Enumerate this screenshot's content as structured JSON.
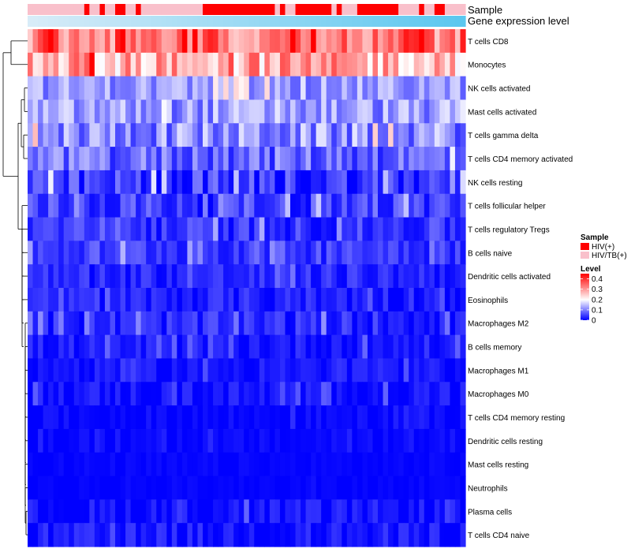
{
  "chart_data": {
    "type": "heatmap",
    "annotations": {
      "sample_track_label": "Sample",
      "expression_track_label": "Gene expression level",
      "sample_groups": [
        "HIV(+)",
        "HIV/TB(+)"
      ],
      "sample_group_colors": [
        "#ff0000",
        "#f9c0cb"
      ],
      "column_groups": [
        1,
        1,
        1,
        1,
        1,
        1,
        1,
        1,
        1,
        1,
        1,
        0,
        1,
        1,
        0,
        1,
        1,
        0,
        0,
        1,
        1,
        0,
        1,
        1,
        1,
        1,
        1,
        1,
        1,
        1,
        1,
        1,
        1,
        1,
        0,
        0,
        0,
        0,
        0,
        0,
        0,
        0,
        0,
        0,
        0,
        0,
        0,
        0,
        1,
        0,
        1,
        1,
        0,
        0,
        0,
        0,
        0,
        0,
        0,
        1,
        0,
        1,
        1,
        1,
        0,
        0,
        0,
        0,
        0,
        0,
        0,
        0,
        1,
        1,
        1,
        1,
        0,
        1,
        1,
        0,
        0,
        1,
        1,
        1,
        1
      ],
      "expression_color_low": "#d8ecf8",
      "expression_color_high": "#5bc7ef"
    },
    "rows": [
      "T cells CD8",
      "Monocytes",
      "NK cells activated",
      "Mast cells activated",
      "T cells gamma delta",
      "T cells CD4 memory activated",
      "NK cells resting",
      "T cells follicular helper",
      "T cells regulatory  Tregs",
      "B cells naive",
      "Dendritic cells activated",
      "Eosinophils",
      "Macrophages M2",
      "B cells memory",
      "Macrophages M1",
      "Macrophages M0",
      "T cells CD4 memory resting",
      "Dendritic cells resting",
      "Mast cells resting",
      "Neutrophils",
      "Plasma cells",
      "T cells CD4 naive"
    ],
    "row_base_levels": [
      0.34,
      0.28,
      0.12,
      0.12,
      0.11,
      0.08,
      0.04,
      0.05,
      0.04,
      0.05,
      0.03,
      0.025,
      0.03,
      0.02,
      0.015,
      0.015,
      0.005,
      0.005,
      0.003,
      0.002,
      0.01,
      0.015
    ],
    "row_spread": [
      0.09,
      0.09,
      0.05,
      0.06,
      0.07,
      0.06,
      0.06,
      0.05,
      0.04,
      0.04,
      0.03,
      0.03,
      0.035,
      0.025,
      0.02,
      0.025,
      0.015,
      0.012,
      0.008,
      0.005,
      0.03,
      0.03
    ],
    "n_columns": 85,
    "legend": {
      "sample_title": "Sample",
      "level_title": "Level",
      "level_ticks": [
        "0.4",
        "0.3",
        "0.2",
        "0.1",
        "0"
      ],
      "level_tick_values": [
        0.4,
        0.3,
        0.2,
        0.1,
        0
      ],
      "scale_min": 0,
      "scale_mid": 0.2,
      "scale_max": 0.45,
      "color_low": "#0000ff",
      "color_mid": "#ffffff",
      "color_high": "#ff0000"
    },
    "dendrogram_color": "#000000"
  }
}
